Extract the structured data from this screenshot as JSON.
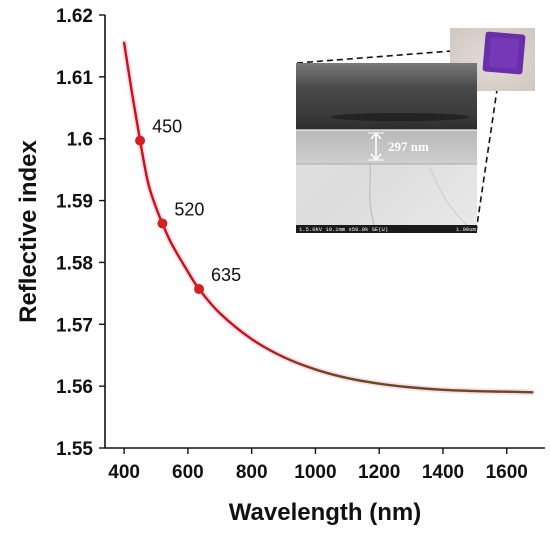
{
  "colors": {
    "curve": "#cc1111",
    "curve_tail": "#6b4a1a",
    "marker": "#d42020",
    "axis": "#111111",
    "sample_purple": "#6a2ea8"
  },
  "chart_data": {
    "type": "line",
    "xlabel": "Wavelength (nm)",
    "ylabel": "Reflective index",
    "xlim": [
      340,
      1720
    ],
    "ylim": [
      1.55,
      1.62
    ],
    "xticks": [
      "400",
      "600",
      "800",
      "1000",
      "1200",
      "1400",
      "1600"
    ],
    "yticks": [
      "1.55",
      "1.56",
      "1.57",
      "1.58",
      "1.59",
      "1.6",
      "1.61",
      "1.62"
    ],
    "grid": false,
    "legend": "none",
    "series": [
      {
        "x": [
          400,
          425,
          450,
          475,
          500,
          520,
          550,
          600,
          635,
          700,
          800,
          900,
          1000,
          1100,
          1200,
          1300,
          1400,
          1500,
          1600,
          1680
        ],
        "y": [
          1.6155,
          1.6073,
          1.5997,
          1.5929,
          1.5889,
          1.5863,
          1.5829,
          1.5785,
          1.5757,
          1.5718,
          1.5676,
          1.5647,
          1.5627,
          1.5613,
          1.5604,
          1.5598,
          1.5594,
          1.5592,
          1.5591,
          1.559
        ]
      }
    ],
    "markers": [
      {
        "x": 450,
        "y": 1.5997,
        "label": "450"
      },
      {
        "x": 520,
        "y": 1.5863,
        "label": "520"
      },
      {
        "x": 635,
        "y": 1.5757,
        "label": "635"
      }
    ]
  },
  "inset": {
    "thickness_label": "297 nm",
    "sem_info": "1.5.0kV 10.1mm x50.0k SE(U)",
    "sem_scale": "1.00um"
  }
}
